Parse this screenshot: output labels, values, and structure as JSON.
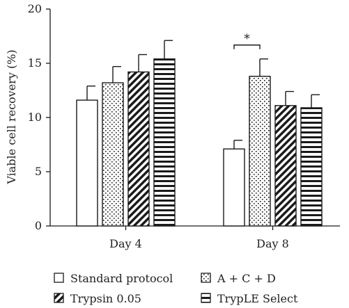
{
  "chart_data": {
    "type": "bar",
    "categories": [
      "Day 4",
      "Day 8"
    ],
    "ylabel": "Viable cell recovery (%)",
    "xlabel": "",
    "ylim": [
      0,
      20
    ],
    "yticks": [
      0,
      5,
      10,
      15,
      20
    ],
    "grid": false,
    "legend_position": "bottom",
    "series": [
      {
        "name": "Standard protocol",
        "pattern": "blank",
        "values": [
          11.6,
          7.1
        ],
        "errors": [
          1.3,
          0.8
        ]
      },
      {
        "name": "A + C + D",
        "pattern": "dots",
        "values": [
          13.2,
          13.8
        ],
        "errors": [
          1.5,
          1.6
        ]
      },
      {
        "name": "Trypsin 0.05",
        "pattern": "diagonal",
        "values": [
          14.2,
          11.1
        ],
        "errors": [
          1.6,
          1.3
        ]
      },
      {
        "name": "TrypLE Select",
        "pattern": "horizontal",
        "values": [
          15.4,
          10.9
        ],
        "errors": [
          1.7,
          1.2
        ]
      }
    ],
    "annotations": [
      {
        "text": "*",
        "category": "Day 8",
        "from_series": 0,
        "to_series": 1
      }
    ],
    "colors": {
      "stroke": "#1a1a1a",
      "fill": "#ffffff"
    }
  }
}
